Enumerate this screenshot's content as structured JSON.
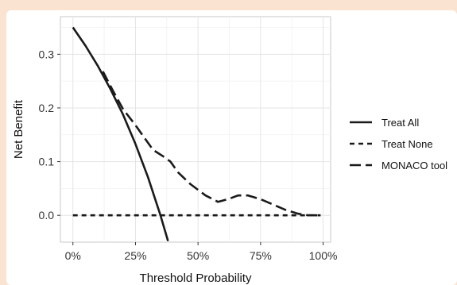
{
  "chart_data": {
    "type": "line",
    "xlabel": "Threshold Probability",
    "ylabel": "Net Benefit",
    "xlim": [
      -0.05,
      1.03
    ],
    "ylim": [
      -0.05,
      0.37
    ],
    "x_ticks": [
      0,
      0.25,
      0.5,
      0.75,
      1.0
    ],
    "x_tick_labels": [
      "0%",
      "25%",
      "50%",
      "75%",
      "100%"
    ],
    "y_ticks": [
      0,
      0.1,
      0.2,
      0.3
    ],
    "y_tick_labels": [
      "0.0",
      "0.1",
      "0.2",
      "0.3"
    ],
    "grid": true,
    "legend_position": "right",
    "series": [
      {
        "name": "Treat All",
        "dash": "solid",
        "color": "#1a1a1a",
        "x": [
          0,
          0.05,
          0.1,
          0.15,
          0.2,
          0.25,
          0.3,
          0.35,
          0.38
        ],
        "y": [
          0.35,
          0.316,
          0.278,
          0.235,
          0.188,
          0.133,
          0.071,
          0.0,
          -0.048
        ]
      },
      {
        "name": "Treat None",
        "dash": "short",
        "color": "#1a1a1a",
        "x": [
          0,
          0.99
        ],
        "y": [
          0,
          0
        ]
      },
      {
        "name": "MONACO tool",
        "dash": "long",
        "color": "#1a1a1a",
        "x": [
          0.12,
          0.16,
          0.2,
          0.25,
          0.28,
          0.32,
          0.36,
          0.39,
          0.42,
          0.47,
          0.53,
          0.58,
          0.62,
          0.66,
          0.7,
          0.75,
          0.8,
          0.85,
          0.9,
          0.94,
          0.99
        ],
        "y": [
          0.268,
          0.232,
          0.198,
          0.168,
          0.148,
          0.122,
          0.11,
          0.1,
          0.08,
          0.058,
          0.037,
          0.025,
          0.03,
          0.037,
          0.037,
          0.03,
          0.02,
          0.01,
          0.003,
          0.0,
          0.0
        ]
      }
    ]
  }
}
